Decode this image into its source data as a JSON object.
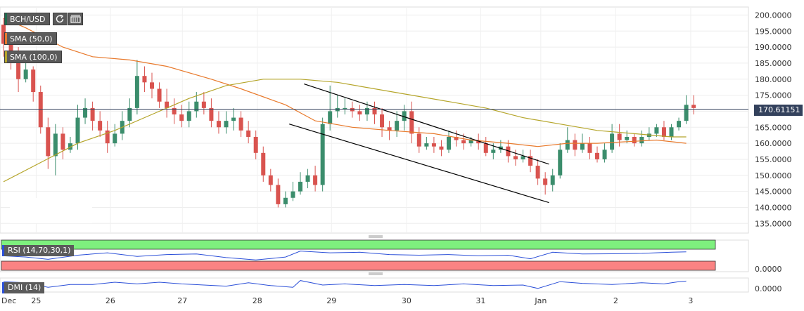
{
  "toolbar": {
    "symbol": "BCH/USD",
    "refresh_icon": "refresh-icon",
    "settings_icon": "indicator-settings-icon",
    "indicators": [
      {
        "label": "SMA (50,0)",
        "color": "#e8792b"
      },
      {
        "label": "SMA (100,0)",
        "color": "#b5a52a"
      }
    ]
  },
  "price_tag": "170.61151",
  "colors": {
    "up": "#3b8d6c",
    "down": "#d9534f",
    "sma50": "#e8792b",
    "sma100": "#b5a52a",
    "trendline": "#000000",
    "current_line": "#33415c",
    "rsi_line": "#2b4fd8",
    "rsi_overbought": "#7ef07e",
    "rsi_oversold": "#fa8383"
  },
  "subpanels": {
    "rsi_label": "RSI (14,70,30,1)",
    "rsi_value": "0.0000",
    "dmi_label": "DMI (14)",
    "dmi_value": "0.0000"
  },
  "chart_data": {
    "type": "candlestick",
    "symbol": "BCH/USD",
    "y_ticks": [
      135,
      140,
      145,
      150,
      155,
      160,
      165,
      170,
      175,
      180,
      185,
      190,
      195,
      200
    ],
    "y_tick_labels": [
      "135.0000",
      "140.0000",
      "145.0000",
      "150.0000",
      "155.0000",
      "160.0000",
      "165.0000",
      "170.0000",
      "175.0000",
      "180.0000",
      "185.0000",
      "190.0000",
      "195.0000",
      "200.0000"
    ],
    "ylim": [
      132,
      202.5
    ],
    "x_tick_labels": [
      "Dec",
      "25",
      "26",
      "27",
      "28",
      "29",
      "30",
      "31",
      "Jan",
      "2",
      "3"
    ],
    "x_tick_positions": [
      0,
      4.4,
      14.4,
      24.1,
      34.2,
      44.2,
      54.3,
      64.3,
      72.4,
      82.5,
      92.6
    ],
    "candles": [
      [
        197,
        191,
        199,
        187
      ],
      [
        191,
        185,
        193,
        183
      ],
      [
        185,
        180,
        190,
        176
      ],
      [
        180,
        183,
        186,
        179
      ],
      [
        183,
        176,
        184,
        173
      ],
      [
        176,
        165,
        178,
        163
      ],
      [
        165,
        156,
        168,
        152
      ],
      [
        156,
        163,
        166,
        150
      ],
      [
        163,
        158,
        165,
        155
      ],
      [
        158,
        160,
        162,
        157
      ],
      [
        160,
        168,
        172,
        158
      ],
      [
        168,
        171,
        174,
        166
      ],
      [
        171,
        167,
        173,
        164
      ],
      [
        167,
        164,
        170,
        162
      ],
      [
        164,
        160,
        167,
        157
      ],
      [
        160,
        163,
        166,
        159
      ],
      [
        163,
        167,
        170,
        161
      ],
      [
        167,
        171,
        174,
        165
      ],
      [
        171,
        181,
        186,
        169
      ],
      [
        181,
        179,
        184,
        176
      ],
      [
        179,
        177,
        182,
        174
      ],
      [
        177,
        173,
        179,
        171
      ],
      [
        173,
        171,
        177,
        168
      ],
      [
        171,
        169,
        174,
        166
      ],
      [
        169,
        167,
        172,
        165
      ],
      [
        167,
        170,
        173,
        165
      ],
      [
        170,
        173,
        176,
        168
      ],
      [
        173,
        171,
        176,
        169
      ],
      [
        171,
        167,
        174,
        165
      ],
      [
        167,
        165,
        170,
        163
      ],
      [
        165,
        167,
        170,
        163
      ],
      [
        167,
        168,
        171,
        164
      ],
      [
        168,
        164,
        170,
        162
      ],
      [
        164,
        162,
        167,
        160
      ],
      [
        162,
        157,
        164,
        155
      ],
      [
        157,
        150,
        159,
        148
      ],
      [
        150,
        147,
        152,
        145
      ],
      [
        147,
        141,
        149,
        140
      ],
      [
        141,
        143,
        145,
        140
      ],
      [
        143,
        145,
        148,
        142
      ],
      [
        145,
        148,
        151,
        144
      ],
      [
        148,
        150,
        152,
        146
      ],
      [
        150,
        147,
        153,
        145
      ],
      [
        147,
        166,
        168,
        145
      ],
      [
        166,
        170,
        178,
        164
      ],
      [
        170,
        171,
        175,
        168
      ],
      [
        171,
        171,
        174,
        169
      ],
      [
        171,
        170,
        173,
        168
      ],
      [
        170,
        169,
        172,
        167
      ],
      [
        169,
        171,
        173,
        167
      ],
      [
        171,
        169,
        173,
        166
      ],
      [
        169,
        165,
        171,
        162
      ],
      [
        165,
        164,
        167,
        161
      ],
      [
        164,
        167,
        170,
        162
      ],
      [
        167,
        170,
        172,
        164
      ],
      [
        170,
        163,
        173,
        160
      ],
      [
        163,
        159,
        165,
        157
      ],
      [
        159,
        160,
        162,
        158
      ],
      [
        160,
        159,
        162,
        157
      ],
      [
        159,
        158,
        161,
        156
      ],
      [
        158,
        162,
        164,
        157
      ],
      [
        162,
        161,
        164,
        159
      ],
      [
        161,
        160,
        163,
        158
      ],
      [
        160,
        161,
        162,
        159
      ],
      [
        161,
        160,
        163,
        158
      ],
      [
        160,
        157,
        162,
        156
      ],
      [
        157,
        158,
        160,
        155
      ],
      [
        158,
        159,
        161,
        157
      ],
      [
        159,
        156,
        161,
        154
      ],
      [
        156,
        155,
        158,
        153
      ],
      [
        155,
        156,
        158,
        154
      ],
      [
        156,
        153,
        158,
        151
      ],
      [
        153,
        149,
        155,
        147
      ],
      [
        149,
        147,
        151,
        144
      ],
      [
        147,
        150,
        152,
        145
      ],
      [
        150,
        158,
        160,
        149
      ],
      [
        158,
        161,
        165,
        157
      ],
      [
        161,
        158,
        163,
        156
      ],
      [
        158,
        160,
        163,
        157
      ],
      [
        160,
        157,
        162,
        155
      ],
      [
        157,
        155,
        159,
        154
      ],
      [
        155,
        158,
        160,
        154
      ],
      [
        158,
        163,
        166,
        157
      ],
      [
        163,
        161,
        166,
        159
      ],
      [
        161,
        162,
        164,
        160
      ],
      [
        162,
        160,
        163,
        159
      ],
      [
        160,
        162,
        164,
        159
      ],
      [
        162,
        163,
        165,
        161
      ],
      [
        163,
        165,
        166,
        162
      ],
      [
        165,
        162,
        167,
        161
      ],
      [
        162,
        165,
        166,
        161
      ],
      [
        165,
        167,
        168,
        164
      ],
      [
        167,
        172,
        175,
        166
      ],
      [
        172,
        171,
        175,
        169
      ]
    ],
    "sma50": [
      [
        0,
        199
      ],
      [
        3,
        196
      ],
      [
        8,
        190
      ],
      [
        12,
        187
      ],
      [
        17,
        186
      ],
      [
        22,
        184
      ],
      [
        28,
        180
      ],
      [
        32,
        177
      ],
      [
        38,
        172
      ],
      [
        42,
        167
      ],
      [
        47,
        165
      ],
      [
        52,
        164
      ],
      [
        58,
        163
      ],
      [
        63,
        161
      ],
      [
        68,
        160
      ],
      [
        72,
        159
      ],
      [
        76,
        160
      ],
      [
        80,
        160
      ],
      [
        88,
        161
      ],
      [
        92,
        160
      ]
    ],
    "sma100": [
      [
        0,
        148
      ],
      [
        5,
        154
      ],
      [
        10,
        160
      ],
      [
        15,
        164
      ],
      [
        20,
        169
      ],
      [
        25,
        174
      ],
      [
        30,
        178
      ],
      [
        35,
        180
      ],
      [
        40,
        180
      ],
      [
        45,
        179
      ],
      [
        50,
        177
      ],
      [
        55,
        175
      ],
      [
        60,
        173
      ],
      [
        65,
        171
      ],
      [
        70,
        168
      ],
      [
        75,
        166
      ],
      [
        80,
        164
      ],
      [
        85,
        163
      ],
      [
        90,
        162
      ],
      [
        92,
        162
      ]
    ],
    "trend_upper": [
      [
        40.5,
        178.5
      ],
      [
        73.5,
        153.5
      ]
    ],
    "trend_lower": [
      [
        38.5,
        166
      ],
      [
        73.5,
        141.5
      ]
    ],
    "current_price": 170.61151,
    "rsi": [
      [
        0,
        0.45
      ],
      [
        3,
        0.35
      ],
      [
        6,
        0.15
      ],
      [
        10,
        0.5
      ],
      [
        14,
        0.7
      ],
      [
        18,
        0.4
      ],
      [
        22,
        0.55
      ],
      [
        26,
        0.6
      ],
      [
        30,
        0.3
      ],
      [
        34,
        0.1
      ],
      [
        38,
        0.35
      ],
      [
        40,
        0.85
      ],
      [
        44,
        0.7
      ],
      [
        48,
        0.75
      ],
      [
        52,
        0.55
      ],
      [
        56,
        0.5
      ],
      [
        60,
        0.55
      ],
      [
        64,
        0.45
      ],
      [
        68,
        0.5
      ],
      [
        71,
        0.2
      ],
      [
        74,
        0.75
      ],
      [
        78,
        0.6
      ],
      [
        82,
        0.62
      ],
      [
        86,
        0.65
      ],
      [
        90,
        0.75
      ],
      [
        92,
        0.78
      ]
    ],
    "dmi": [
      [
        0,
        0.8
      ],
      [
        3,
        0.7
      ],
      [
        6,
        0.3
      ],
      [
        9,
        0.55
      ],
      [
        12,
        0.55
      ],
      [
        15,
        0.75
      ],
      [
        18,
        0.6
      ],
      [
        21,
        0.75
      ],
      [
        24,
        0.6
      ],
      [
        27,
        0.5
      ],
      [
        30,
        0.4
      ],
      [
        33,
        0.7
      ],
      [
        36,
        0.45
      ],
      [
        39,
        0.3
      ],
      [
        40,
        0.9
      ],
      [
        43,
        0.5
      ],
      [
        46,
        0.6
      ],
      [
        50,
        0.45
      ],
      [
        54,
        0.55
      ],
      [
        58,
        0.45
      ],
      [
        62,
        0.6
      ],
      [
        66,
        0.45
      ],
      [
        70,
        0.5
      ],
      [
        72,
        0.2
      ],
      [
        75,
        0.8
      ],
      [
        78,
        0.65
      ],
      [
        82,
        0.55
      ],
      [
        86,
        0.7
      ],
      [
        89,
        0.6
      ],
      [
        91,
        0.8
      ],
      [
        92,
        0.85
      ]
    ]
  }
}
